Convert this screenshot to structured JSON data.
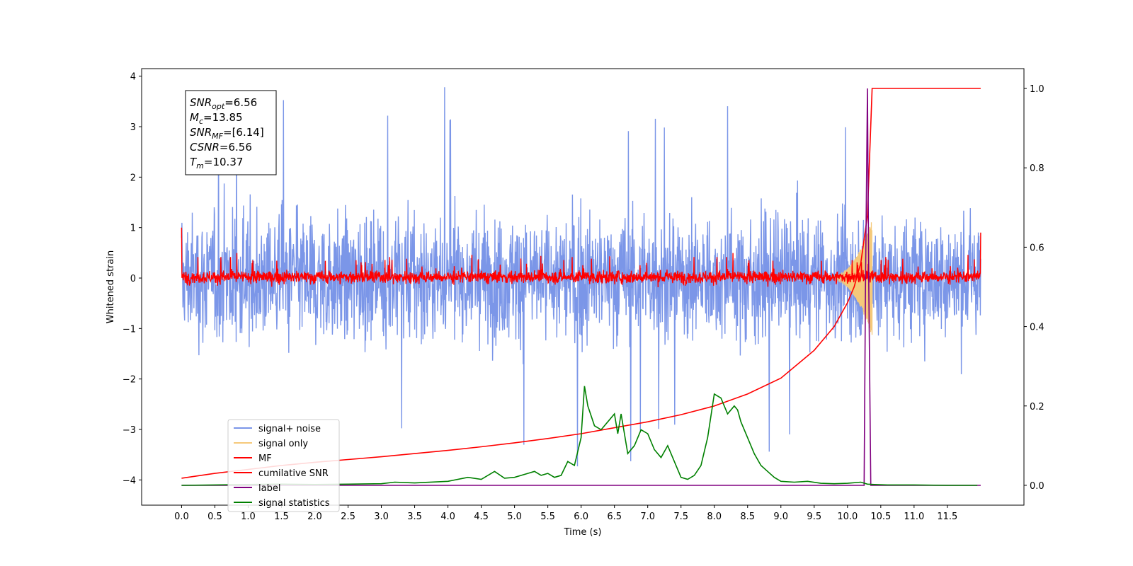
{
  "chart_data": {
    "type": "line",
    "title": "",
    "xlabel": "Time (s)",
    "ylabel": "Whitened strain",
    "xlim": [
      -0.6,
      12.65
    ],
    "ylim": [
      -4.5,
      4.15
    ],
    "y2lim": [
      -0.05,
      1.05
    ],
    "x_ticks": [
      "0.0",
      "0.5",
      "1.0",
      "1.5",
      "2.0",
      "2.5",
      "3.0",
      "3.5",
      "4.0",
      "4.5",
      "5.0",
      "5.5",
      "6.0",
      "6.5",
      "7.0",
      "7.5",
      "8.0",
      "8.5",
      "9.0",
      "9.5",
      "10.0",
      "10.5",
      "11.0",
      "11.5"
    ],
    "y_ticks": [
      "4",
      "3",
      "2",
      "1",
      "0",
      "−1",
      "−2",
      "−3",
      "−4"
    ],
    "y2_ticks": [
      "1.0",
      "0.8",
      "0.6",
      "0.4",
      "0.2",
      "0.0"
    ],
    "grid": false,
    "legend_position": "lower-left",
    "info_box": {
      "lines": [
        {
          "sym": "SNR",
          "sub": "opt",
          "val": "=6.56"
        },
        {
          "sym": "M",
          "sub": "c",
          "val": "=13.85"
        },
        {
          "sym": "SNR",
          "sub": "MF",
          "val": "=[6.14]"
        },
        {
          "sym": "CSNR",
          "sub": "",
          "val": "=6.56"
        },
        {
          "sym": "T",
          "sub": "m",
          "val": "=10.37"
        }
      ]
    },
    "series": [
      {
        "name": "signal+ noise",
        "color": "#7b96e8",
        "axis": "left",
        "style": "noise",
        "x_range": [
          0.0,
          12.0
        ],
        "amplitude_band": [
          -2.3,
          2.3
        ],
        "peak_max": 3.8,
        "peak_min": -4.0
      },
      {
        "name": "signal only",
        "color": "#f5c97a",
        "axis": "left",
        "style": "chirp",
        "x_range": [
          9.8,
          10.37
        ],
        "peak_amplitude": 1.1
      },
      {
        "name": "MF",
        "color": "#ff0000",
        "axis": "left",
        "style": "noise",
        "x_range": [
          0.0,
          12.0
        ],
        "amplitude_band": [
          -0.25,
          0.3
        ],
        "edge_values": [
          1.0,
          0.9
        ]
      },
      {
        "name": "cumilative SNR",
        "color": "#ff0000",
        "axis": "right",
        "x": [
          0.0,
          0.5,
          1.0,
          1.5,
          2.0,
          2.5,
          3.0,
          3.5,
          4.0,
          4.5,
          5.0,
          5.5,
          6.0,
          6.5,
          7.0,
          7.5,
          8.0,
          8.5,
          9.0,
          9.5,
          9.8,
          10.0,
          10.1,
          10.2,
          10.3,
          10.37,
          10.5,
          11.0,
          11.5,
          12.0
        ],
        "values": [
          0.018,
          0.03,
          0.04,
          0.05,
          0.058,
          0.065,
          0.072,
          0.08,
          0.088,
          0.097,
          0.107,
          0.118,
          0.13,
          0.145,
          0.16,
          0.178,
          0.2,
          0.23,
          0.27,
          0.34,
          0.4,
          0.46,
          0.5,
          0.56,
          0.68,
          1.0,
          1.0,
          1.0,
          1.0,
          1.0
        ]
      },
      {
        "name": "label",
        "color": "#800080",
        "axis": "right",
        "x": [
          0.0,
          10.25,
          10.27,
          10.3,
          10.32,
          10.35,
          12.0
        ],
        "values": [
          0.0,
          0.0,
          0.5,
          1.0,
          0.5,
          0.0,
          0.0
        ]
      },
      {
        "name": "signal statistics",
        "color": "#008000",
        "axis": "right",
        "x": [
          0.0,
          0.5,
          1.0,
          1.5,
          2.0,
          2.5,
          3.0,
          3.2,
          3.5,
          4.0,
          4.3,
          4.5,
          4.7,
          4.85,
          5.0,
          5.2,
          5.3,
          5.4,
          5.5,
          5.6,
          5.7,
          5.8,
          5.9,
          6.0,
          6.05,
          6.1,
          6.2,
          6.3,
          6.4,
          6.5,
          6.55,
          6.6,
          6.7,
          6.8,
          6.9,
          7.0,
          7.1,
          7.2,
          7.3,
          7.4,
          7.5,
          7.6,
          7.7,
          7.8,
          7.9,
          8.0,
          8.1,
          8.15,
          8.2,
          8.3,
          8.35,
          8.4,
          8.5,
          8.6,
          8.7,
          8.8,
          8.9,
          9.0,
          9.2,
          9.4,
          9.6,
          9.8,
          10.0,
          10.2,
          10.3,
          10.4,
          10.6,
          11.0,
          11.5,
          11.95
        ],
        "values": [
          0.0,
          0.001,
          0.002,
          0.003,
          0.002,
          0.003,
          0.004,
          0.008,
          0.006,
          0.01,
          0.02,
          0.015,
          0.035,
          0.018,
          0.02,
          0.03,
          0.035,
          0.025,
          0.03,
          0.02,
          0.025,
          0.06,
          0.05,
          0.12,
          0.25,
          0.2,
          0.15,
          0.14,
          0.16,
          0.18,
          0.13,
          0.18,
          0.08,
          0.1,
          0.14,
          0.13,
          0.09,
          0.07,
          0.1,
          0.06,
          0.02,
          0.015,
          0.025,
          0.05,
          0.12,
          0.23,
          0.22,
          0.2,
          0.18,
          0.2,
          0.19,
          0.16,
          0.12,
          0.08,
          0.05,
          0.035,
          0.02,
          0.01,
          0.008,
          0.01,
          0.005,
          0.004,
          0.005,
          0.008,
          0.003,
          0.002,
          0.001,
          0.001,
          0.0,
          0.0
        ]
      }
    ]
  }
}
